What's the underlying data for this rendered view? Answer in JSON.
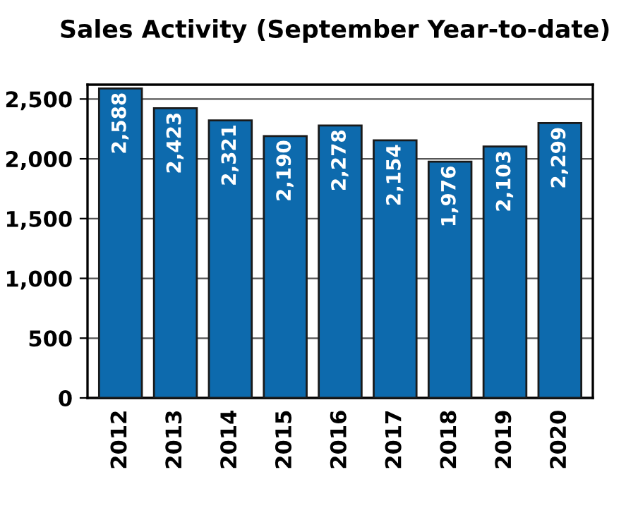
{
  "chart_data": {
    "type": "bar",
    "title": "Sales Activity (September Year-to-date)",
    "categories": [
      "2012",
      "2013",
      "2014",
      "2015",
      "2016",
      "2017",
      "2018",
      "2019",
      "2020"
    ],
    "values": [
      2588,
      2423,
      2321,
      2190,
      2278,
      2154,
      1976,
      2103,
      2299
    ],
    "value_labels": [
      "2,588",
      "2,423",
      "2,321",
      "2,190",
      "2,278",
      "2,154",
      "1,976",
      "2,103",
      "2,299"
    ],
    "color": "#0d6aad",
    "ylim": [
      0,
      2620
    ],
    "yticks": [
      {
        "value": 0,
        "label": "0"
      },
      {
        "value": 500,
        "label": "500"
      },
      {
        "value": 1000,
        "label": "1,000"
      },
      {
        "value": 1500,
        "label": "1,500"
      },
      {
        "value": 2000,
        "label": "2,000"
      },
      {
        "value": 2500,
        "label": "2,500"
      }
    ],
    "grid": "y"
  }
}
